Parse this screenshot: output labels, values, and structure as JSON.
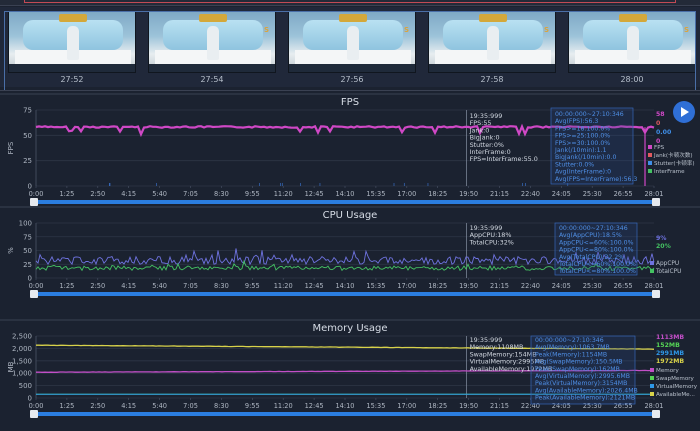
{
  "thumbnails": [
    {
      "time": "27:52",
      "tag": ""
    },
    {
      "time": "27:54",
      "tag": "S"
    },
    {
      "time": "27:56",
      "tag": "S"
    },
    {
      "time": "27:58",
      "tag": "S"
    },
    {
      "time": "28:00",
      "tag": "S"
    }
  ],
  "x_ticks": [
    "0:00",
    "1:25",
    "2:50",
    "4:15",
    "5:40",
    "7:05",
    "8:30",
    "9:55",
    "11:20",
    "12:45",
    "14:10",
    "15:35",
    "17:00",
    "18:25",
    "19:50",
    "21:15",
    "22:40",
    "24:05",
    "25:30",
    "26:55",
    "28:01"
  ],
  "colors": {
    "fps": "#d048c6",
    "app_cpu": "#6f73e0",
    "total_cpu": "#44c262",
    "memory": "#c24fc7",
    "swap": "#55d455",
    "virtual": "#2e98e8",
    "available": "#d8d24a",
    "accent": "#2f6fd6"
  },
  "fps_chart": {
    "title": "FPS",
    "ylabel": "FPS",
    "y_ticks": [
      "0",
      "25",
      "50",
      "75"
    ],
    "ylim": [
      0,
      75
    ],
    "fps_value": 55,
    "tooltip": [
      "19:35:999",
      "FPS:55",
      "Jank:0",
      "BigJank:0",
      "Stutter:0%",
      "InterFrame:0",
      "FPS=InterFrame:55.0"
    ],
    "summary": [
      "00:00:000~27:10:346",
      "Avg(FPS):56.3",
      "FPS>=18:100.0%",
      "FPS>=25:100.0%",
      "FPS>=30:100.0%",
      "Jank(/10min):1.1",
      "BigJank(/10min):0.0",
      "Stutter:0.0%",
      "Avg(InterFrame):0",
      "Avg(FPS=InterFrame):56.3"
    ],
    "right_values": [
      "58",
      "0",
      "0.00",
      "0"
    ],
    "legend": [
      "FPS",
      "Jank(卡顿次数)",
      "Stutter(卡顿率)",
      "InterFrame"
    ]
  },
  "cpu_chart": {
    "title": "CPU Usage",
    "ylabel": "%",
    "y_ticks": [
      "0",
      "25",
      "50",
      "75",
      "100"
    ],
    "ylim": [
      0,
      100
    ],
    "app_cpu": 18,
    "total_cpu": 32,
    "tooltip": [
      "19:35:999",
      "AppCPU:18%",
      "TotalCPU:32%"
    ],
    "summary": [
      "00:00:000~27:10:346",
      "Avg(AppCPU):18.5%",
      "AppCPU<=60%:100.0%",
      "AppCPU<=80%:100.0%",
      "Avg(TotalCPU):32.2%",
      "TotalCPU<=60%:100.0%",
      "TotalCPU<=80%:100.0%"
    ],
    "right_values": [
      "9%",
      "20%"
    ],
    "legend": [
      "AppCPU",
      "TotalCPU"
    ]
  },
  "memory_chart": {
    "title": "Memory Usage",
    "ylabel": "MB",
    "y_ticks": [
      "0",
      "500",
      "1,000",
      "1,500",
      "2,000",
      "2,500"
    ],
    "ylim": [
      0,
      2500
    ],
    "memory": 1108,
    "swap": 154,
    "virtual": 2995,
    "available": 1972,
    "tooltip": [
      "19:35:999",
      "Memory:1108MB",
      "SwapMemory:154MB",
      "VirtualMemory:2995MB",
      "AvailableMemory:1972MB"
    ],
    "summary": [
      "00:00:000~27:10:346",
      "Avg(Memory):1063.7MB",
      "Peak(Memory):1154MB",
      "Avg(SwapMemory):150.5MB",
      "Peak(SwapMemory):162MB",
      "Avg(VirtualMemory):2995.6MB",
      "Peak(VirtualMemory):3154MB",
      "Avg(AvailableMemory):2026.4MB",
      "Peak(AvailableMemory):2121MB"
    ],
    "right_values": [
      "1113MB",
      "152MB",
      "2991MB",
      "1972MB"
    ],
    "legend": [
      "Memory",
      "SwapMemory",
      "VirtualMemory",
      "AvailableMe..."
    ]
  }
}
